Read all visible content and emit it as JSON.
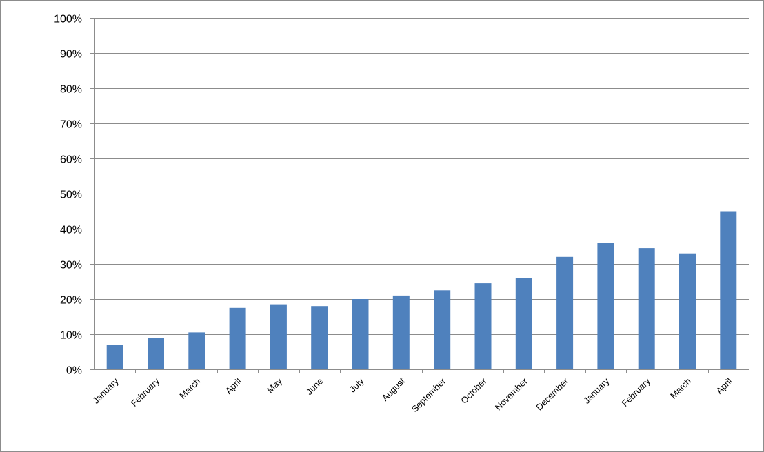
{
  "chart_data": {
    "type": "bar",
    "categories": [
      "January",
      "February",
      "March",
      "April",
      "May",
      "June",
      "July",
      "August",
      "September",
      "October",
      "November",
      "December",
      "January",
      "February",
      "March",
      "April"
    ],
    "series": [
      {
        "values": [
          7,
          9,
          10.5,
          17.5,
          18.5,
          18,
          20,
          21,
          22.5,
          24.5,
          26,
          32,
          36,
          34.5,
          33,
          45
        ]
      }
    ],
    "title": "",
    "xlabel": "",
    "ylabel": "",
    "ylim": [
      0,
      100
    ],
    "yticks": [
      0,
      10,
      20,
      30,
      40,
      50,
      60,
      70,
      80,
      90,
      100
    ],
    "ytick_format": "percent",
    "grid": true,
    "legend": "none",
    "bar_color": "#4f81bd",
    "grid_color": "#8c8c8c"
  }
}
